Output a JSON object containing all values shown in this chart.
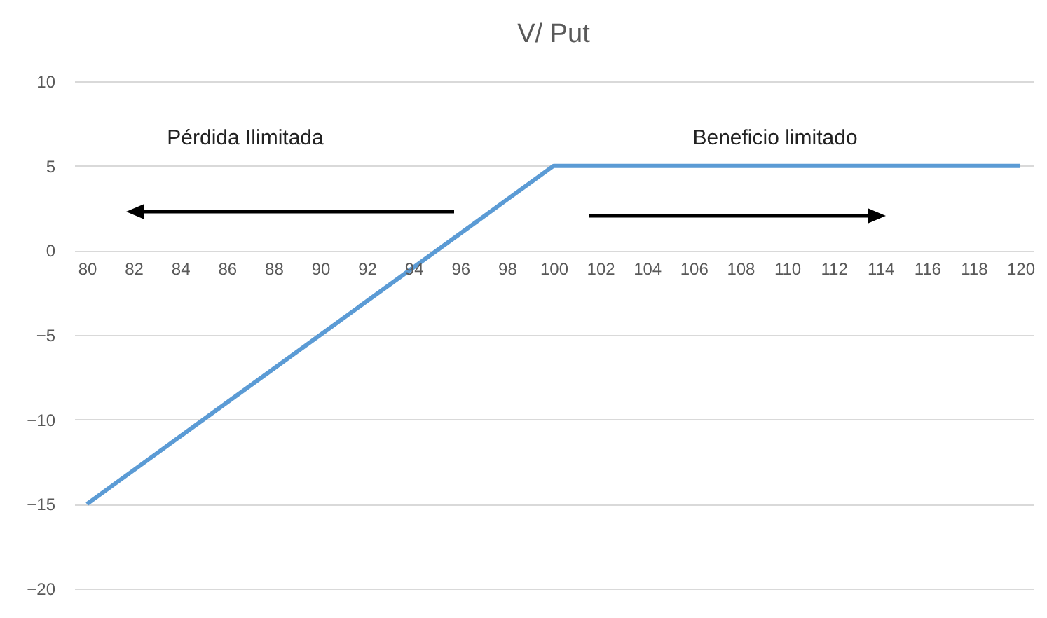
{
  "chart_data": {
    "type": "line",
    "title": "V/ Put",
    "categories": [
      "80",
      "82",
      "84",
      "86",
      "88",
      "90",
      "92",
      "94",
      "96",
      "98",
      "100",
      "102",
      "104",
      "106",
      "108",
      "110",
      "112",
      "114",
      "116",
      "118",
      "120"
    ],
    "series": [
      {
        "color": "#5b9bd5",
        "values": [
          -15,
          -13,
          -11,
          -9,
          -7,
          -5,
          -3,
          -1,
          1,
          3,
          5,
          5,
          5,
          5,
          5,
          5,
          5,
          5,
          5,
          5,
          5
        ]
      }
    ],
    "ylim": [
      -20,
      10
    ],
    "yticks": [
      -20,
      -15,
      -10,
      -5,
      0,
      5,
      10
    ],
    "grid": "y",
    "marker": "none",
    "line_style": "solid",
    "annotations": [
      "Pérdida Ilimitada",
      "Beneficio limitado"
    ]
  }
}
